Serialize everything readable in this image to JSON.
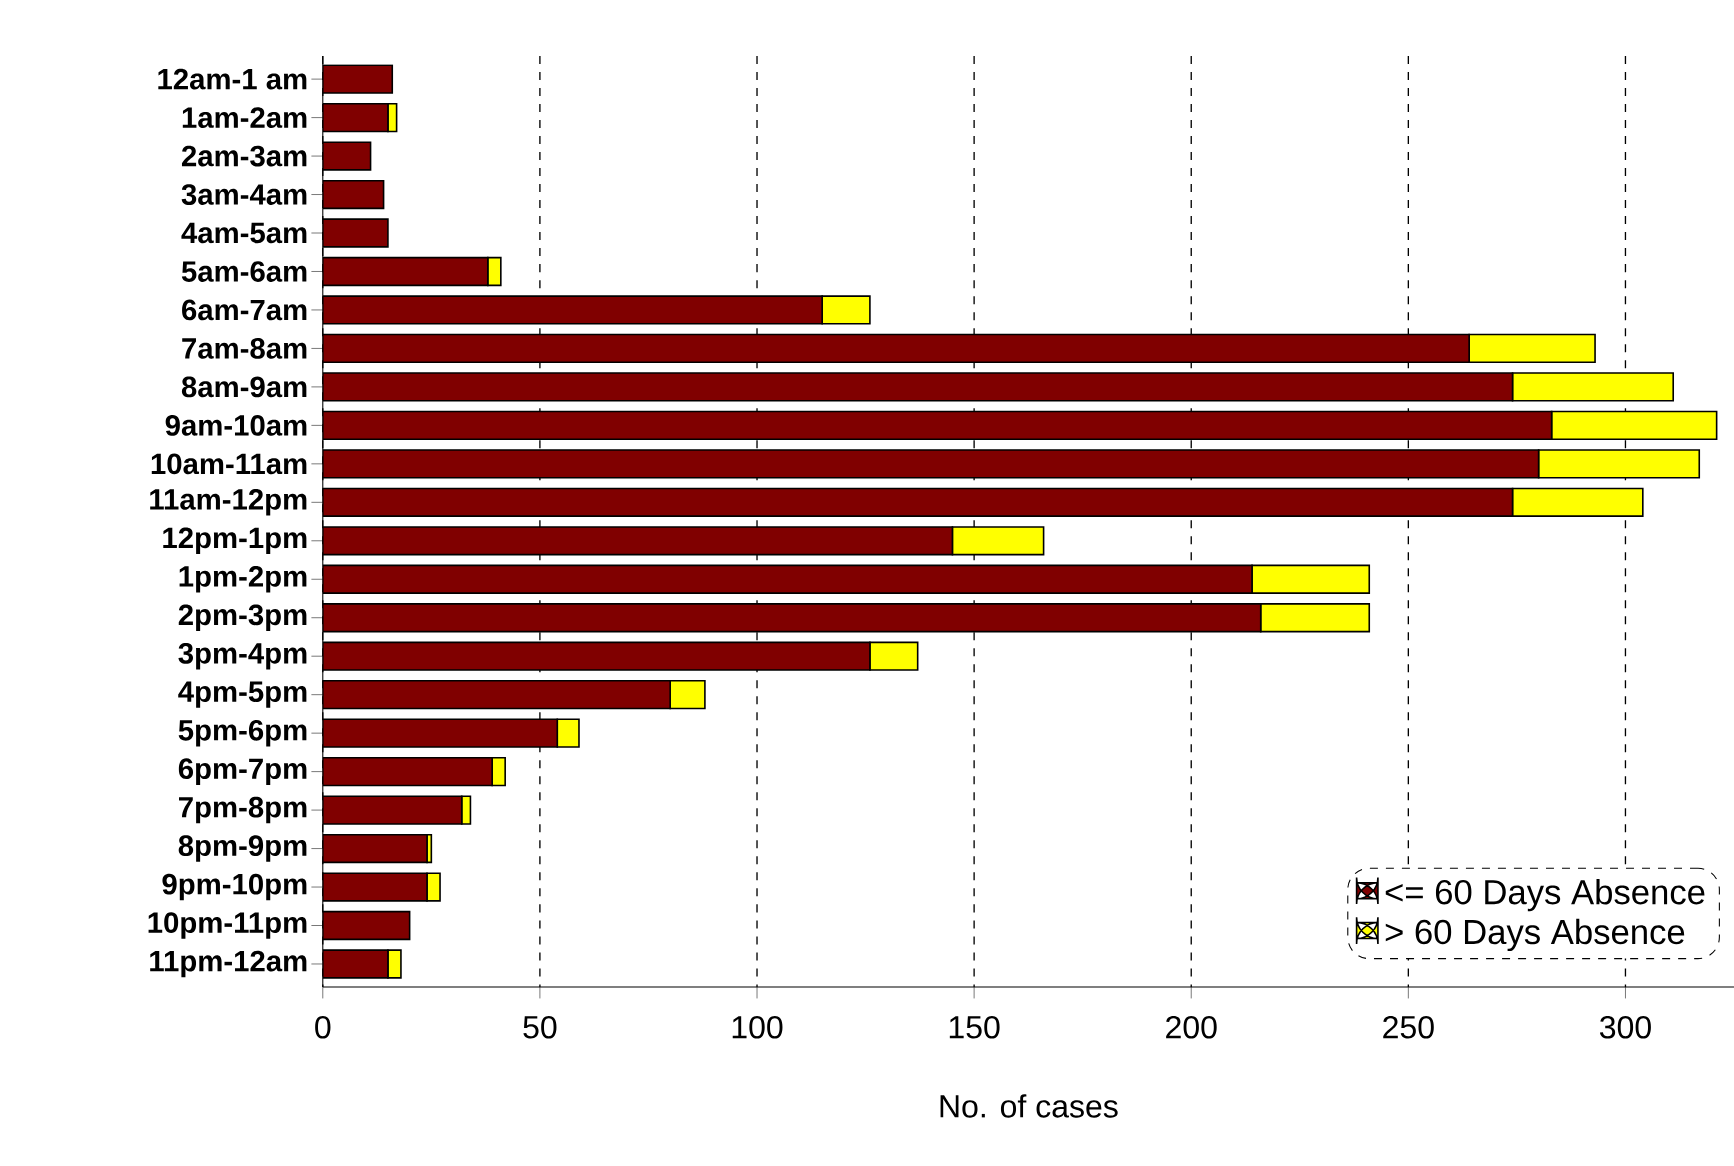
{
  "chart_data": {
    "type": "bar",
    "orientation": "horizontal",
    "stacked": true,
    "xlabel": "No. of cases",
    "categories": [
      "12am-1 am",
      "1am-2am",
      "2am-3am",
      "3am-4am",
      "4am-5am",
      "5am-6am",
      "6am-7am",
      "7am-8am",
      "8am-9am",
      "9am-10am",
      "10am-11am",
      "11am-12pm",
      "12pm-1pm",
      "1pm-2pm",
      "2pm-3pm",
      "3pm-4pm",
      "4pm-5pm",
      "5pm-6pm",
      "6pm-7pm",
      "7pm-8pm",
      "8pm-9pm",
      "9pm-10pm",
      "10pm-11pm",
      "11pm-12am"
    ],
    "series": [
      {
        "name": "<= 60 Days Absence",
        "color": "#800000",
        "values": [
          16,
          15,
          11,
          14,
          15,
          38,
          115,
          264,
          274,
          283,
          280,
          274,
          145,
          214,
          216,
          126,
          80,
          54,
          39,
          32,
          24,
          24,
          20,
          15
        ]
      },
      {
        "name": "> 60 Days Absence",
        "color": "#ffff00",
        "values": [
          0,
          2,
          0,
          0,
          0,
          3,
          11,
          29,
          37,
          38,
          37,
          30,
          21,
          27,
          25,
          11,
          8,
          5,
          3,
          2,
          1,
          3,
          0,
          3
        ]
      }
    ],
    "xlim": [
      0,
      325
    ],
    "xticks": [
      0,
      50,
      100,
      150,
      200,
      250,
      300
    ],
    "grid": "x",
    "legend": "bottom right"
  }
}
